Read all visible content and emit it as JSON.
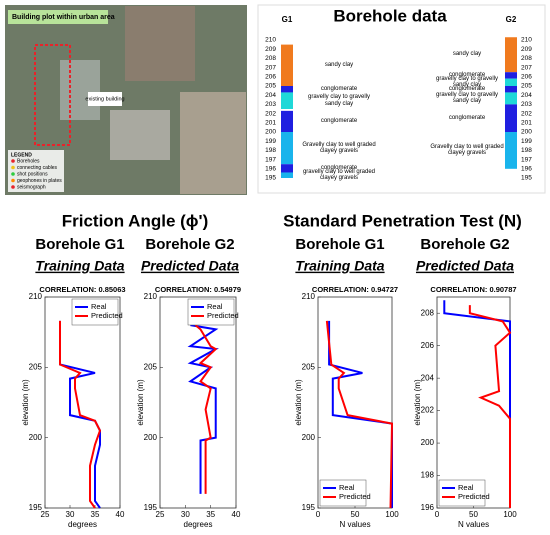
{
  "site_photo": {
    "title": "Building plot within urban area",
    "building_label": "existing building",
    "legend": {
      "title": "LEGEND",
      "items": [
        "Boreholes",
        "connecting cables",
        "shot positions",
        "geophones in plates",
        "seismograph"
      ]
    }
  },
  "borehole": {
    "title": "Borehole data",
    "left_name": "G1",
    "right_name": "G2",
    "elevations": [
      210,
      209,
      208,
      207,
      206,
      205,
      204,
      203,
      202,
      201,
      200,
      199,
      198,
      197,
      196,
      195
    ],
    "g1_layers": [
      {
        "label": "sandy clay",
        "top": 209.5,
        "bottom": 205,
        "color": "#f07a1e"
      },
      {
        "label": "conglomerate",
        "top": 205,
        "bottom": 204.3,
        "color": "#1f1fe0"
      },
      {
        "label": "gravelly clay to gravelly sandy clay",
        "top": 204.3,
        "bottom": 202.5,
        "color": "#1fd8d8"
      },
      {
        "label": "conglomerate",
        "top": 202.3,
        "bottom": 200,
        "color": "#1f1fe0"
      },
      {
        "label": "Gravelly clay to well graded clayey gravels",
        "top": 200,
        "bottom": 196.5,
        "color": "#19b4ec"
      },
      {
        "label": "conglomerate",
        "top": 196.5,
        "bottom": 195.6,
        "color": "#1f1fe0"
      },
      {
        "label": "gravelly clay to well graded clayey gravels",
        "top": 195.6,
        "bottom": 195,
        "color": "#19b4ec"
      }
    ],
    "g2_layers": [
      {
        "label": "sandy clay",
        "top": 210.3,
        "bottom": 206.5,
        "color": "#f07a1e"
      },
      {
        "label": "conglomerate",
        "top": 206.5,
        "bottom": 205.8,
        "color": "#1f1fe0"
      },
      {
        "label": "gravelly clay to gravelly sandy clay",
        "top": 205.8,
        "bottom": 205,
        "color": "#1fd8d8"
      },
      {
        "label": "conglomerate",
        "top": 205,
        "bottom": 204.3,
        "color": "#1f1fe0"
      },
      {
        "label": "gravelly clay to gravelly sandy clay",
        "top": 204.3,
        "bottom": 203,
        "color": "#1fd8d8"
      },
      {
        "label": "conglomerate",
        "top": 203,
        "bottom": 200,
        "color": "#1f1fe0"
      },
      {
        "label": "Gravelly clay to well graded clayey gravels",
        "top": 200,
        "bottom": 196,
        "color": "#19b4ec"
      }
    ]
  },
  "headings": [
    {
      "title": "Friction Angle (ϕ')",
      "boreholes": [
        {
          "name": "Borehole G1",
          "subtitle": "Training Data"
        },
        {
          "name": "Borehole G2",
          "subtitle": "Predicted Data"
        }
      ]
    },
    {
      "title": "Standard Penetration Test (N)",
      "boreholes": [
        {
          "name": "Borehole G1",
          "subtitle": "Training Data"
        },
        {
          "name": "Borehole G2",
          "subtitle": "Predicted Data"
        }
      ]
    }
  ],
  "chart_data": [
    {
      "type": "line",
      "title": "CORRELATION: 0.85063",
      "xlabel": "degrees",
      "ylabel": "elevation (m)",
      "xlim": [
        25,
        40
      ],
      "xticks": [
        25,
        30,
        35,
        40
      ],
      "ylim": [
        195,
        210
      ],
      "yticks": [
        195,
        200,
        205,
        210
      ],
      "legend": "upper right",
      "series": [
        {
          "name": "Real",
          "color": "#0000ff",
          "y": [
            208.3,
            205.2,
            204.6,
            204.2,
            203.5,
            201.6,
            201.2,
            200.5,
            199.5,
            198,
            196,
            195.5,
            195
          ],
          "values": [
            28,
            28,
            35,
            30,
            30,
            30,
            35,
            36,
            36,
            35,
            35,
            35,
            36
          ]
        },
        {
          "name": "Predicted",
          "color": "#ff0000",
          "y": [
            208.3,
            205.2,
            204.6,
            204.2,
            203.5,
            201.6,
            201.2,
            200.5,
            199.5,
            198,
            196,
            195.5,
            195
          ],
          "values": [
            28,
            28,
            32,
            31,
            31,
            32,
            35,
            36,
            35,
            34,
            34,
            34,
            35
          ]
        }
      ]
    },
    {
      "type": "line",
      "title": "CORRELATION: 0.54979",
      "xlabel": "degrees",
      "ylabel": "elevation (m)",
      "xlim": [
        25,
        40
      ],
      "xticks": [
        25,
        30,
        35,
        40
      ],
      "ylim": [
        195,
        210
      ],
      "yticks": [
        195,
        200,
        205,
        210
      ],
      "legend": "upper right",
      "series": [
        {
          "name": "Real",
          "color": "#0000ff",
          "y": [
            208,
            207.7,
            206.5,
            206.3,
            205.3,
            205,
            204,
            203.5,
            202,
            200,
            199.8,
            198,
            196
          ],
          "values": [
            31,
            36,
            31,
            36,
            31,
            35,
            31,
            36,
            36,
            36,
            33,
            33,
            33
          ]
        },
        {
          "name": "Predicted",
          "color": "#ff0000",
          "y": [
            208,
            207.7,
            206.5,
            206.3,
            205.3,
            205,
            204,
            203.5,
            202,
            200,
            199.8,
            198,
            196
          ],
          "values": [
            32,
            33,
            35,
            36,
            33,
            35,
            33,
            35,
            34,
            35,
            34,
            34,
            34
          ]
        }
      ]
    },
    {
      "type": "line",
      "title": "CORRELATION: 0.94727",
      "xlabel": "N values",
      "ylabel": "elevation (m)",
      "xlim": [
        0,
        100
      ],
      "xticks": [
        0,
        50,
        100
      ],
      "ylim": [
        195,
        210
      ],
      "yticks": [
        195,
        200,
        205,
        210
      ],
      "legend": "lower left",
      "series": [
        {
          "name": "Real",
          "color": "#0000ff",
          "y": [
            208.3,
            205.2,
            204.6,
            204.2,
            203.5,
            201.6,
            201,
            195
          ],
          "values": [
            15,
            15,
            60,
            20,
            20,
            20,
            100,
            100
          ]
        },
        {
          "name": "Predicted",
          "color": "#ff0000",
          "y": [
            208.3,
            205.2,
            204.6,
            204.2,
            203.5,
            201.6,
            201,
            195
          ],
          "values": [
            12,
            18,
            35,
            28,
            28,
            40,
            100,
            98
          ]
        }
      ]
    },
    {
      "type": "line",
      "title": "CORRELATION: 0.90787",
      "xlabel": "N values",
      "ylabel": "elevation (m)",
      "xlim": [
        0,
        100
      ],
      "xticks": [
        0,
        50,
        100
      ],
      "ylim": [
        196,
        209
      ],
      "yticks": [
        196,
        198,
        200,
        202,
        204,
        206,
        208
      ],
      "legend": "lower left",
      "series": [
        {
          "name": "Real",
          "color": "#0000ff",
          "y": [
            208.8,
            208,
            207.5,
            196
          ],
          "values": [
            10,
            10,
            100,
            100
          ]
        },
        {
          "name": "Predicted",
          "color": "#ff0000",
          "y": [
            208.5,
            208,
            207.5,
            206.8,
            206,
            203.2,
            202.8,
            202.3,
            201.5,
            200,
            196
          ],
          "values": [
            45,
            45,
            90,
            100,
            80,
            85,
            60,
            85,
            100,
            100,
            100
          ]
        }
      ]
    }
  ]
}
